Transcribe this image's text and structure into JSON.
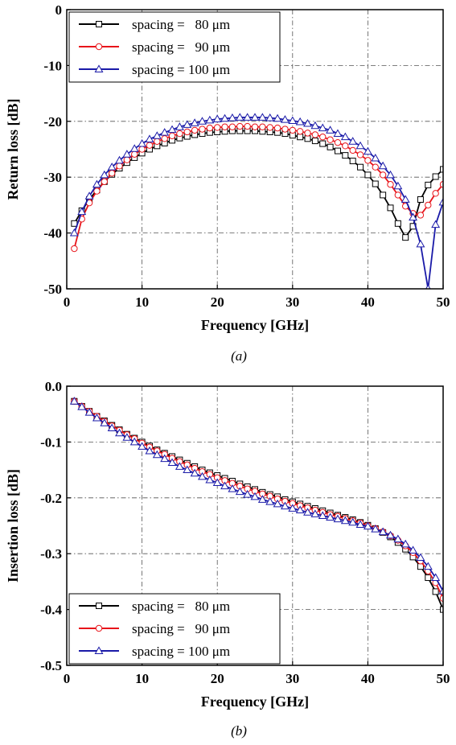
{
  "chart_data": [
    {
      "type": "line",
      "caption": "(a)",
      "xlabel": "Frequency [GHz]",
      "ylabel": "Return loss [dB]",
      "xlim": [
        0,
        50
      ],
      "ylim": [
        -50,
        0
      ],
      "xticks": [
        0,
        10,
        20,
        30,
        40,
        50
      ],
      "yticks": [
        0,
        -10,
        -20,
        -30,
        -40,
        -50
      ],
      "xtick_labels": [
        "0",
        "10",
        "20",
        "30",
        "40",
        "50"
      ],
      "ytick_labels": [
        "0",
        "-10",
        "-20",
        "-30",
        "-40",
        "-50"
      ],
      "grid": true,
      "legend_position": "top-left",
      "series": [
        {
          "name": "spacing =   80 μm",
          "color": "#000000",
          "marker": "square",
          "x": [
            1,
            2,
            3,
            4,
            5,
            6,
            7,
            8,
            9,
            10,
            11,
            12,
            13,
            14,
            15,
            16,
            17,
            18,
            19,
            20,
            21,
            22,
            23,
            24,
            25,
            26,
            27,
            28,
            29,
            30,
            31,
            32,
            33,
            34,
            35,
            36,
            37,
            38,
            39,
            40,
            41,
            42,
            43,
            44,
            45,
            46,
            47,
            48,
            49,
            50
          ],
          "y": [
            -38.3,
            -36.0,
            -34.0,
            -32.3,
            -30.8,
            -29.5,
            -28.4,
            -27.4,
            -26.5,
            -25.7,
            -25.0,
            -24.4,
            -23.9,
            -23.4,
            -23.0,
            -22.7,
            -22.4,
            -22.2,
            -22.0,
            -21.9,
            -21.8,
            -21.7,
            -21.7,
            -21.7,
            -21.7,
            -21.8,
            -21.9,
            -22.0,
            -22.2,
            -22.5,
            -22.8,
            -23.1,
            -23.5,
            -24.0,
            -24.6,
            -25.3,
            -26.1,
            -27.1,
            -28.2,
            -29.6,
            -31.2,
            -33.2,
            -35.5,
            -38.3,
            -40.8,
            -38.8,
            -34.0,
            -31.4,
            -29.9,
            -28.6
          ]
        },
        {
          "name": "spacing =   90 μm",
          "color": "#e8141a",
          "marker": "circle",
          "x": [
            1,
            2,
            3,
            4,
            5,
            6,
            7,
            8,
            9,
            10,
            11,
            12,
            13,
            14,
            15,
            16,
            17,
            18,
            19,
            20,
            21,
            22,
            23,
            24,
            25,
            26,
            27,
            28,
            29,
            30,
            31,
            32,
            33,
            34,
            35,
            36,
            37,
            38,
            39,
            40,
            41,
            42,
            43,
            44,
            45,
            46,
            47,
            48,
            49,
            50
          ],
          "y": [
            -42.8,
            -37.5,
            -34.6,
            -32.5,
            -30.8,
            -29.3,
            -28.0,
            -26.9,
            -25.9,
            -25.0,
            -24.3,
            -23.6,
            -23.1,
            -22.6,
            -22.2,
            -21.9,
            -21.6,
            -21.4,
            -21.2,
            -21.1,
            -21.0,
            -21.0,
            -20.9,
            -20.9,
            -21.0,
            -21.0,
            -21.1,
            -21.2,
            -21.4,
            -21.6,
            -21.8,
            -22.1,
            -22.4,
            -22.8,
            -23.3,
            -23.8,
            -24.4,
            -25.2,
            -26.0,
            -27.0,
            -28.2,
            -29.6,
            -31.3,
            -33.2,
            -35.2,
            -36.5,
            -36.8,
            -35.0,
            -32.9,
            -31.3
          ]
        },
        {
          "name": "spacing = 100 μm",
          "color": "#1a1aa8",
          "marker": "triangle",
          "x": [
            1,
            2,
            3,
            4,
            5,
            6,
            7,
            8,
            9,
            10,
            11,
            12,
            13,
            14,
            15,
            16,
            17,
            18,
            19,
            20,
            21,
            22,
            23,
            24,
            25,
            26,
            27,
            28,
            29,
            30,
            31,
            32,
            33,
            34,
            35,
            36,
            37,
            38,
            39,
            40,
            41,
            42,
            43,
            44,
            45,
            46,
            47,
            48,
            49,
            50
          ],
          "y": [
            -40.0,
            -36.2,
            -33.4,
            -31.3,
            -29.6,
            -28.2,
            -27.0,
            -25.9,
            -24.9,
            -24.0,
            -23.2,
            -22.6,
            -22.0,
            -21.5,
            -21.0,
            -20.6,
            -20.3,
            -20.0,
            -19.8,
            -19.6,
            -19.5,
            -19.4,
            -19.3,
            -19.3,
            -19.3,
            -19.3,
            -19.4,
            -19.5,
            -19.7,
            -19.9,
            -20.1,
            -20.4,
            -20.8,
            -21.2,
            -21.6,
            -22.2,
            -22.8,
            -23.6,
            -24.4,
            -25.4,
            -26.6,
            -28.0,
            -29.6,
            -31.6,
            -34.0,
            -37.2,
            -42.0,
            -50.0,
            -38.5,
            -34.5
          ]
        }
      ]
    },
    {
      "type": "line",
      "caption": "(b)",
      "xlabel": "Frequency [GHz]",
      "ylabel": "Insertion loss [dB]",
      "xlim": [
        0,
        50
      ],
      "ylim": [
        -0.5,
        0.0
      ],
      "xticks": [
        0,
        10,
        20,
        30,
        40,
        50
      ],
      "yticks": [
        0.0,
        -0.1,
        -0.2,
        -0.3,
        -0.4,
        -0.5
      ],
      "xtick_labels": [
        "0",
        "10",
        "20",
        "30",
        "40",
        "50"
      ],
      "ytick_labels": [
        "0.0",
        "-0.1",
        "-0.2",
        "-0.3",
        "-0.4",
        "-0.5"
      ],
      "grid": true,
      "legend_position": "bottom-left",
      "series": [
        {
          "name": "spacing =   80 μm",
          "color": "#000000",
          "marker": "square",
          "x": [
            1,
            2,
            3,
            4,
            5,
            6,
            7,
            8,
            9,
            10,
            11,
            12,
            13,
            14,
            15,
            16,
            17,
            18,
            19,
            20,
            21,
            22,
            23,
            24,
            25,
            26,
            27,
            28,
            29,
            30,
            31,
            32,
            33,
            34,
            35,
            36,
            37,
            38,
            39,
            40,
            41,
            42,
            43,
            44,
            45,
            46,
            47,
            48,
            49,
            50
          ],
          "y": [
            -0.027,
            -0.036,
            -0.045,
            -0.054,
            -0.062,
            -0.07,
            -0.078,
            -0.086,
            -0.093,
            -0.1,
            -0.107,
            -0.114,
            -0.12,
            -0.126,
            -0.132,
            -0.138,
            -0.144,
            -0.15,
            -0.155,
            -0.16,
            -0.165,
            -0.17,
            -0.175,
            -0.18,
            -0.185,
            -0.19,
            -0.194,
            -0.198,
            -0.203,
            -0.207,
            -0.211,
            -0.215,
            -0.219,
            -0.223,
            -0.227,
            -0.231,
            -0.235,
            -0.239,
            -0.244,
            -0.249,
            -0.255,
            -0.262,
            -0.27,
            -0.28,
            -0.292,
            -0.306,
            -0.323,
            -0.343,
            -0.368,
            -0.4
          ]
        },
        {
          "name": "spacing =   90 μm",
          "color": "#e8141a",
          "marker": "circle",
          "x": [
            1,
            2,
            3,
            4,
            5,
            6,
            7,
            8,
            9,
            10,
            11,
            12,
            13,
            14,
            15,
            16,
            17,
            18,
            19,
            20,
            21,
            22,
            23,
            24,
            25,
            26,
            27,
            28,
            29,
            30,
            31,
            32,
            33,
            34,
            35,
            36,
            37,
            38,
            39,
            40,
            41,
            42,
            43,
            44,
            45,
            46,
            47,
            48,
            49,
            50
          ],
          "y": [
            -0.027,
            -0.036,
            -0.045,
            -0.054,
            -0.063,
            -0.071,
            -0.079,
            -0.087,
            -0.094,
            -0.102,
            -0.109,
            -0.116,
            -0.122,
            -0.129,
            -0.135,
            -0.141,
            -0.147,
            -0.153,
            -0.158,
            -0.164,
            -0.169,
            -0.174,
            -0.179,
            -0.184,
            -0.188,
            -0.193,
            -0.197,
            -0.202,
            -0.206,
            -0.21,
            -0.214,
            -0.218,
            -0.222,
            -0.226,
            -0.23,
            -0.233,
            -0.237,
            -0.241,
            -0.245,
            -0.25,
            -0.255,
            -0.261,
            -0.268,
            -0.276,
            -0.286,
            -0.298,
            -0.313,
            -0.331,
            -0.352,
            -0.38
          ]
        },
        {
          "name": "spacing = 100 μm",
          "color": "#1a1aa8",
          "marker": "triangle",
          "x": [
            1,
            2,
            3,
            4,
            5,
            6,
            7,
            8,
            9,
            10,
            11,
            12,
            13,
            14,
            15,
            16,
            17,
            18,
            19,
            20,
            21,
            22,
            23,
            24,
            25,
            26,
            27,
            28,
            29,
            30,
            31,
            32,
            33,
            34,
            35,
            36,
            37,
            38,
            39,
            40,
            41,
            42,
            43,
            44,
            45,
            46,
            47,
            48,
            49,
            50
          ],
          "y": [
            -0.027,
            -0.037,
            -0.047,
            -0.057,
            -0.066,
            -0.075,
            -0.084,
            -0.092,
            -0.1,
            -0.108,
            -0.116,
            -0.123,
            -0.13,
            -0.137,
            -0.144,
            -0.15,
            -0.156,
            -0.162,
            -0.168,
            -0.173,
            -0.179,
            -0.184,
            -0.189,
            -0.194,
            -0.198,
            -0.203,
            -0.207,
            -0.211,
            -0.215,
            -0.219,
            -0.222,
            -0.226,
            -0.229,
            -0.232,
            -0.235,
            -0.238,
            -0.241,
            -0.244,
            -0.248,
            -0.251,
            -0.256,
            -0.261,
            -0.267,
            -0.274,
            -0.283,
            -0.294,
            -0.307,
            -0.323,
            -0.343,
            -0.367
          ]
        }
      ]
    }
  ]
}
